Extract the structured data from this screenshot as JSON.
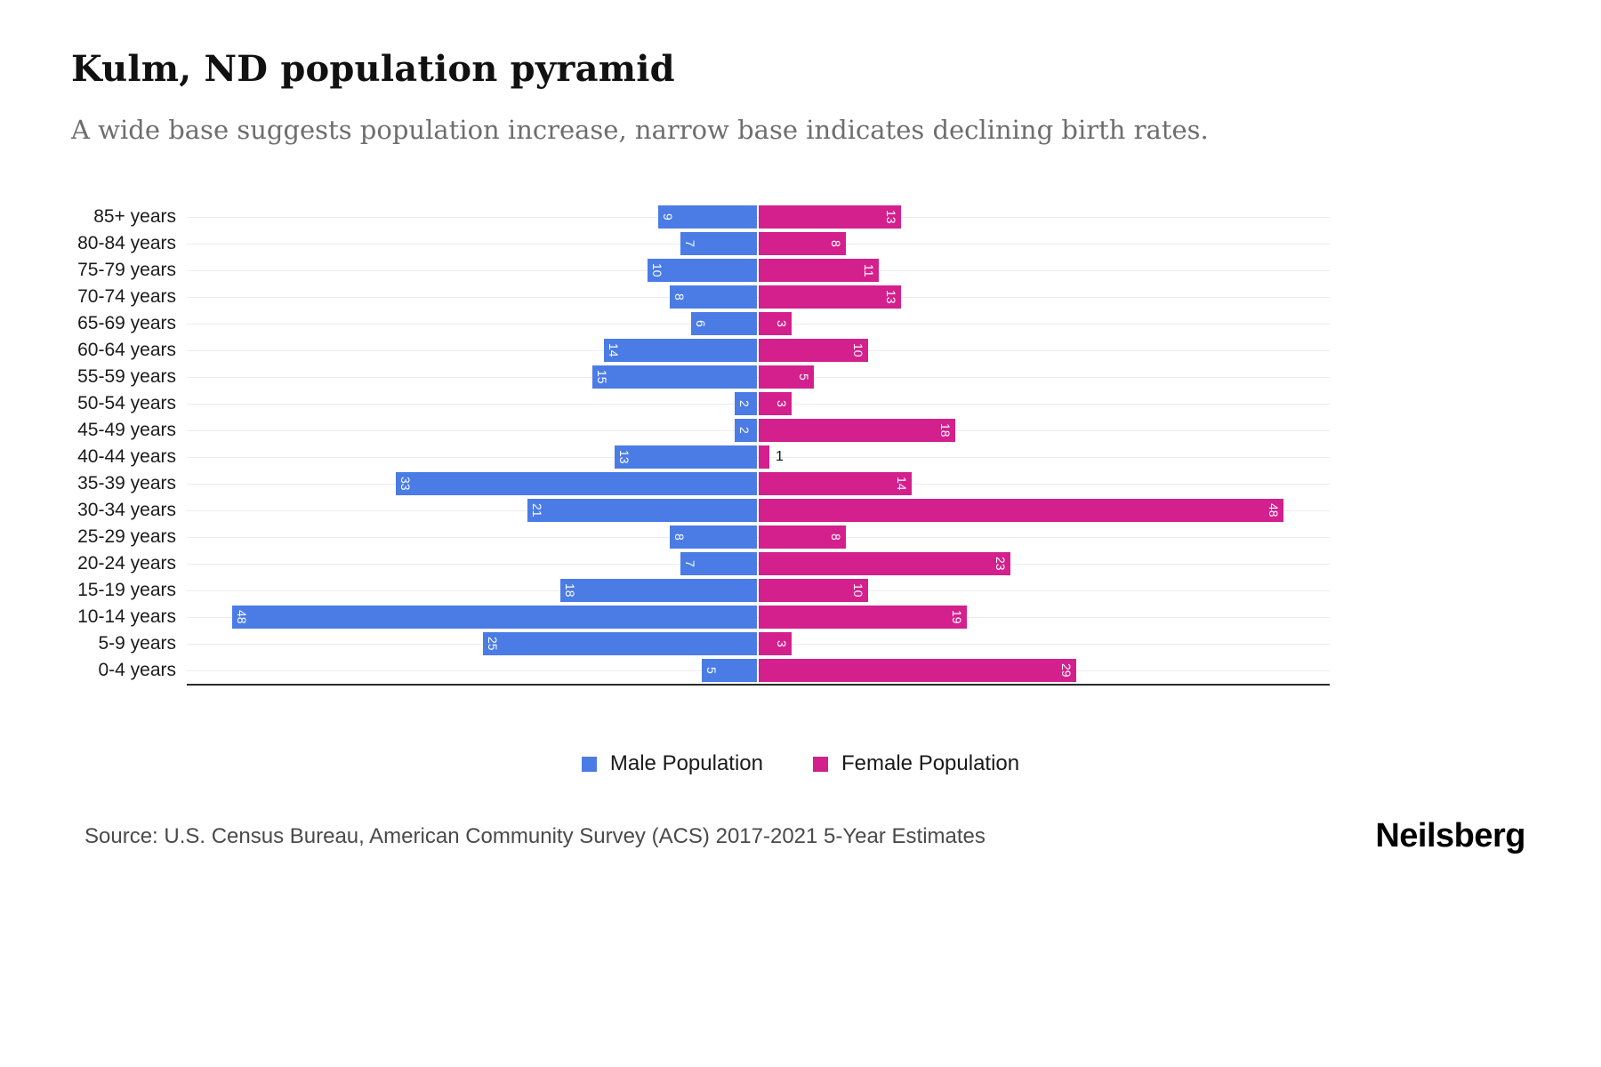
{
  "header": {
    "title": "Kulm, ND population pyramid",
    "subtitle": "A wide base suggests population increase, narrow base indicates declining birth rates."
  },
  "chart_data": {
    "type": "bar",
    "variant": "population-pyramid",
    "title": "Kulm, ND population pyramid",
    "categories": [
      "85+ years",
      "80-84 years",
      "75-79 years",
      "70-74 years",
      "65-69 years",
      "60-64 years",
      "55-59 years",
      "50-54 years",
      "45-49 years",
      "40-44 years",
      "35-39 years",
      "30-34 years",
      "25-29 years",
      "20-24 years",
      "15-19 years",
      "10-14 years",
      "5-9 years",
      "0-4 years"
    ],
    "series": [
      {
        "name": "Male Population",
        "color": "#4b7ce5",
        "values": [
          9,
          7,
          10,
          8,
          6,
          14,
          15,
          2,
          2,
          13,
          33,
          21,
          8,
          7,
          18,
          48,
          25,
          5
        ]
      },
      {
        "name": "Female Population",
        "color": "#d3208d",
        "values": [
          13,
          8,
          11,
          13,
          3,
          10,
          5,
          3,
          18,
          1,
          14,
          48,
          8,
          23,
          10,
          19,
          3,
          29
        ]
      }
    ],
    "xlim_each_side": [
      0,
      52
    ],
    "grid": true,
    "legend_position": "bottom"
  },
  "legend": {
    "male_label": "Male Population",
    "female_label": "Female Population"
  },
  "footer": {
    "source": "Source: U.S. Census Bureau, American Community Survey (ACS) 2017-2021 5-Year Estimates",
    "brand": "Neilsberg"
  }
}
